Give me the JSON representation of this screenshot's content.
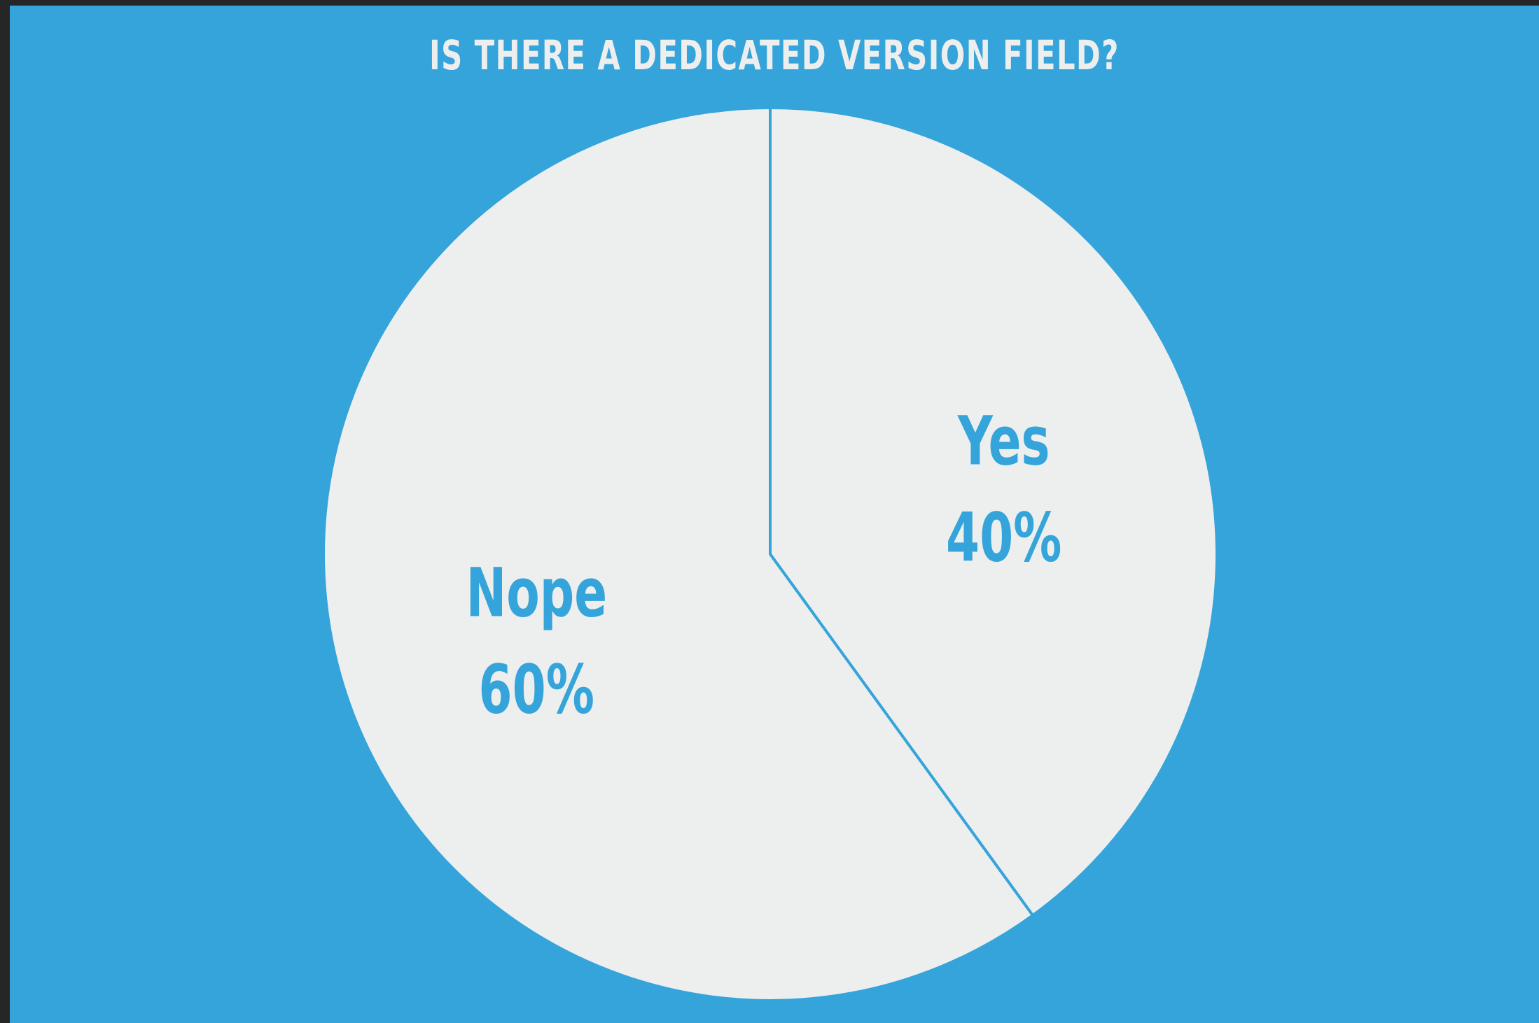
{
  "chart_data": {
    "type": "pie",
    "title": "IS THERE A DEDICATED VERSION FIELD?",
    "slices": [
      {
        "name": "Yes",
        "value": 40,
        "value_label": "40%"
      },
      {
        "name": "Nope",
        "value": 60,
        "value_label": "60%"
      }
    ],
    "start_angle": "12 o'clock, clockwise",
    "colors": {
      "background": "#35a4da",
      "slice_fill": "#edefef",
      "label": "#35a4da",
      "title": "#edefef",
      "outer_frame": "#262626"
    }
  }
}
